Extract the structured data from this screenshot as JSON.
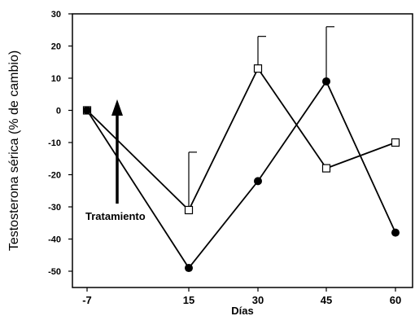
{
  "chart_data": {
    "type": "line",
    "title": "",
    "xlabel": "Días",
    "ylabel": "Testosterona sérica  (% de cambio)",
    "x": [
      -7,
      15,
      30,
      45,
      60
    ],
    "x_tick_labels": [
      "-7",
      "15",
      "30",
      "45",
      "60"
    ],
    "y_ticks": [
      30,
      20,
      10,
      0,
      -10,
      -20,
      -30,
      -40,
      -50
    ],
    "ylim": [
      -50,
      30
    ],
    "grid": false,
    "legend": "none",
    "series": [
      {
        "marker": "open-square",
        "color": "#000000",
        "values": [
          0,
          -31,
          13,
          -18,
          -10
        ],
        "error_upper": [
          null,
          -13,
          23,
          null,
          null
        ]
      },
      {
        "marker": "filled-circle",
        "color": "#000000",
        "values": [
          0,
          -49,
          -22,
          9,
          -38
        ],
        "error_upper": [
          null,
          null,
          null,
          26,
          null
        ]
      }
    ],
    "annotations": [
      {
        "text": "Tratamiento",
        "arrow": "up",
        "at_x": -7
      }
    ]
  }
}
